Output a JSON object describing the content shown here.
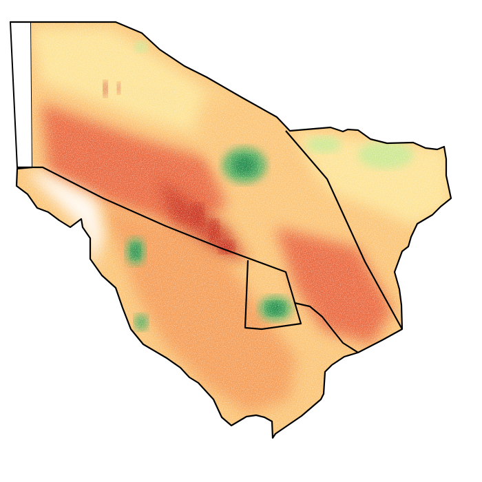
{
  "map": {
    "colors": {
      "background": "#ffffff",
      "boundary": "#000000",
      "very_low": "#c9331f",
      "low": "#e8603a",
      "mid_low": "#f49a55",
      "mid": "#fbc577",
      "mid_high": "#fde69a",
      "high": "#cde891",
      "very_high": "#57b060",
      "peak": "#1a8a4a",
      "nodata": "#ffffff"
    }
  }
}
